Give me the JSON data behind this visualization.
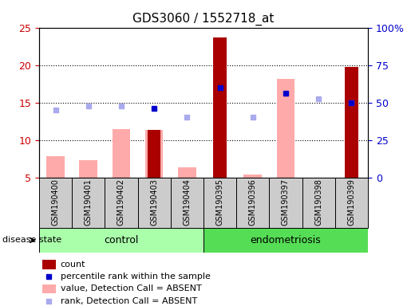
{
  "title": "GDS3060 / 1552718_at",
  "samples": [
    "GSM190400",
    "GSM190401",
    "GSM190402",
    "GSM190403",
    "GSM190404",
    "GSM190395",
    "GSM190396",
    "GSM190397",
    "GSM190398",
    "GSM190399"
  ],
  "count_values": [
    null,
    null,
    null,
    11.3,
    null,
    23.7,
    null,
    null,
    null,
    19.7
  ],
  "value_absent": [
    7.8,
    7.3,
    11.5,
    11.3,
    6.4,
    null,
    5.4,
    18.2,
    null,
    null
  ],
  "rank_absent": [
    14.0,
    14.5,
    14.5,
    null,
    13.0,
    null,
    13.0,
    null,
    15.5,
    15.0
  ],
  "percentile_absent": [
    null,
    null,
    null,
    14.2,
    null,
    17.0,
    null,
    16.2,
    null,
    15.0
  ],
  "left_ylim": [
    5,
    25
  ],
  "right_ylim": [
    0,
    100
  ],
  "left_yticks": [
    5,
    10,
    15,
    20,
    25
  ],
  "right_yticks": [
    0,
    25,
    50,
    75,
    100
  ],
  "right_yticklabels": [
    "0",
    "25",
    "50",
    "75",
    "100%"
  ],
  "left_color": "#cc0000",
  "right_color": "#0000cc",
  "bar_dark_red": "#aa0000",
  "bar_pink": "#ffaaaa",
  "dot_blue": "#0000cc",
  "dot_light_blue": "#aaaaee",
  "control_color": "#aaffaa",
  "endometriosis_color": "#55dd55",
  "n_control": 5,
  "n_endo": 5
}
